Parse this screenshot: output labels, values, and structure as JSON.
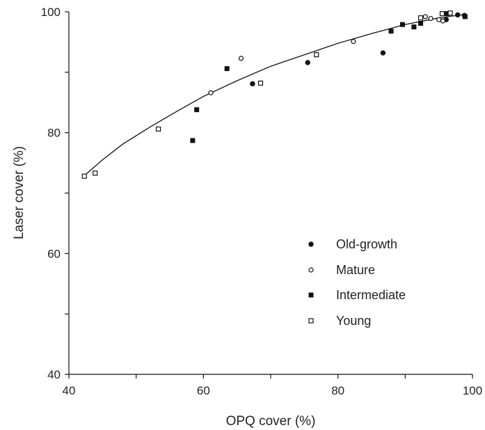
{
  "chart_data": {
    "type": "scatter",
    "title": "",
    "xlabel": "OPQ cover (%)",
    "ylabel": "Laser cover (%)",
    "xlim": [
      40,
      100
    ],
    "ylim": [
      40,
      100
    ],
    "x_ticks": [
      40,
      60,
      80,
      100
    ],
    "y_ticks": [
      40,
      60,
      80,
      100
    ],
    "grid": false,
    "legend_position": "bottom-right",
    "series": [
      {
        "name": "Old-growth",
        "marker": "filled-circle",
        "color": "#111111",
        "points": [
          [
            67.3,
            88.1
          ],
          [
            75.5,
            91.6
          ],
          [
            86.7,
            93.2
          ],
          [
            96.1,
            98.7
          ],
          [
            97.8,
            99.5
          ],
          [
            98.8,
            99.4
          ]
        ]
      },
      {
        "name": "Mature",
        "marker": "open-circle",
        "color": "#111111",
        "points": [
          [
            61.1,
            86.6
          ],
          [
            65.6,
            92.3
          ],
          [
            82.3,
            95.1
          ],
          [
            93.0,
            99.2
          ],
          [
            93.8,
            98.9
          ],
          [
            95.0,
            98.7
          ],
          [
            95.6,
            98.5
          ]
        ]
      },
      {
        "name": "Intermediate",
        "marker": "filled-square",
        "color": "#111111",
        "points": [
          [
            58.4,
            78.7
          ],
          [
            59.0,
            83.8
          ],
          [
            63.5,
            90.6
          ],
          [
            87.9,
            96.8
          ],
          [
            89.6,
            97.9
          ],
          [
            91.3,
            97.5
          ],
          [
            92.3,
            98.1
          ],
          [
            96.2,
            99.7
          ],
          [
            98.9,
            99.2
          ]
        ]
      },
      {
        "name": "Young",
        "marker": "open-square",
        "color": "#111111",
        "points": [
          [
            42.3,
            72.8
          ],
          [
            43.9,
            73.3
          ],
          [
            53.3,
            80.6
          ],
          [
            68.5,
            88.2
          ],
          [
            76.8,
            92.9
          ],
          [
            92.3,
            99.0
          ],
          [
            95.5,
            99.7
          ],
          [
            96.7,
            99.8
          ]
        ]
      }
    ],
    "fit_line": {
      "color": "#111111",
      "points": [
        [
          42,
          72.6
        ],
        [
          45,
          75.5
        ],
        [
          48,
          78.1
        ],
        [
          52,
          80.9
        ],
        [
          56,
          83.5
        ],
        [
          60,
          86.0
        ],
        [
          65,
          88.6
        ],
        [
          70,
          91.0
        ],
        [
          75,
          92.9
        ],
        [
          80,
          94.8
        ],
        [
          85,
          96.4
        ],
        [
          90,
          97.9
        ],
        [
          95,
          99.0
        ],
        [
          99,
          99.6
        ]
      ]
    }
  }
}
